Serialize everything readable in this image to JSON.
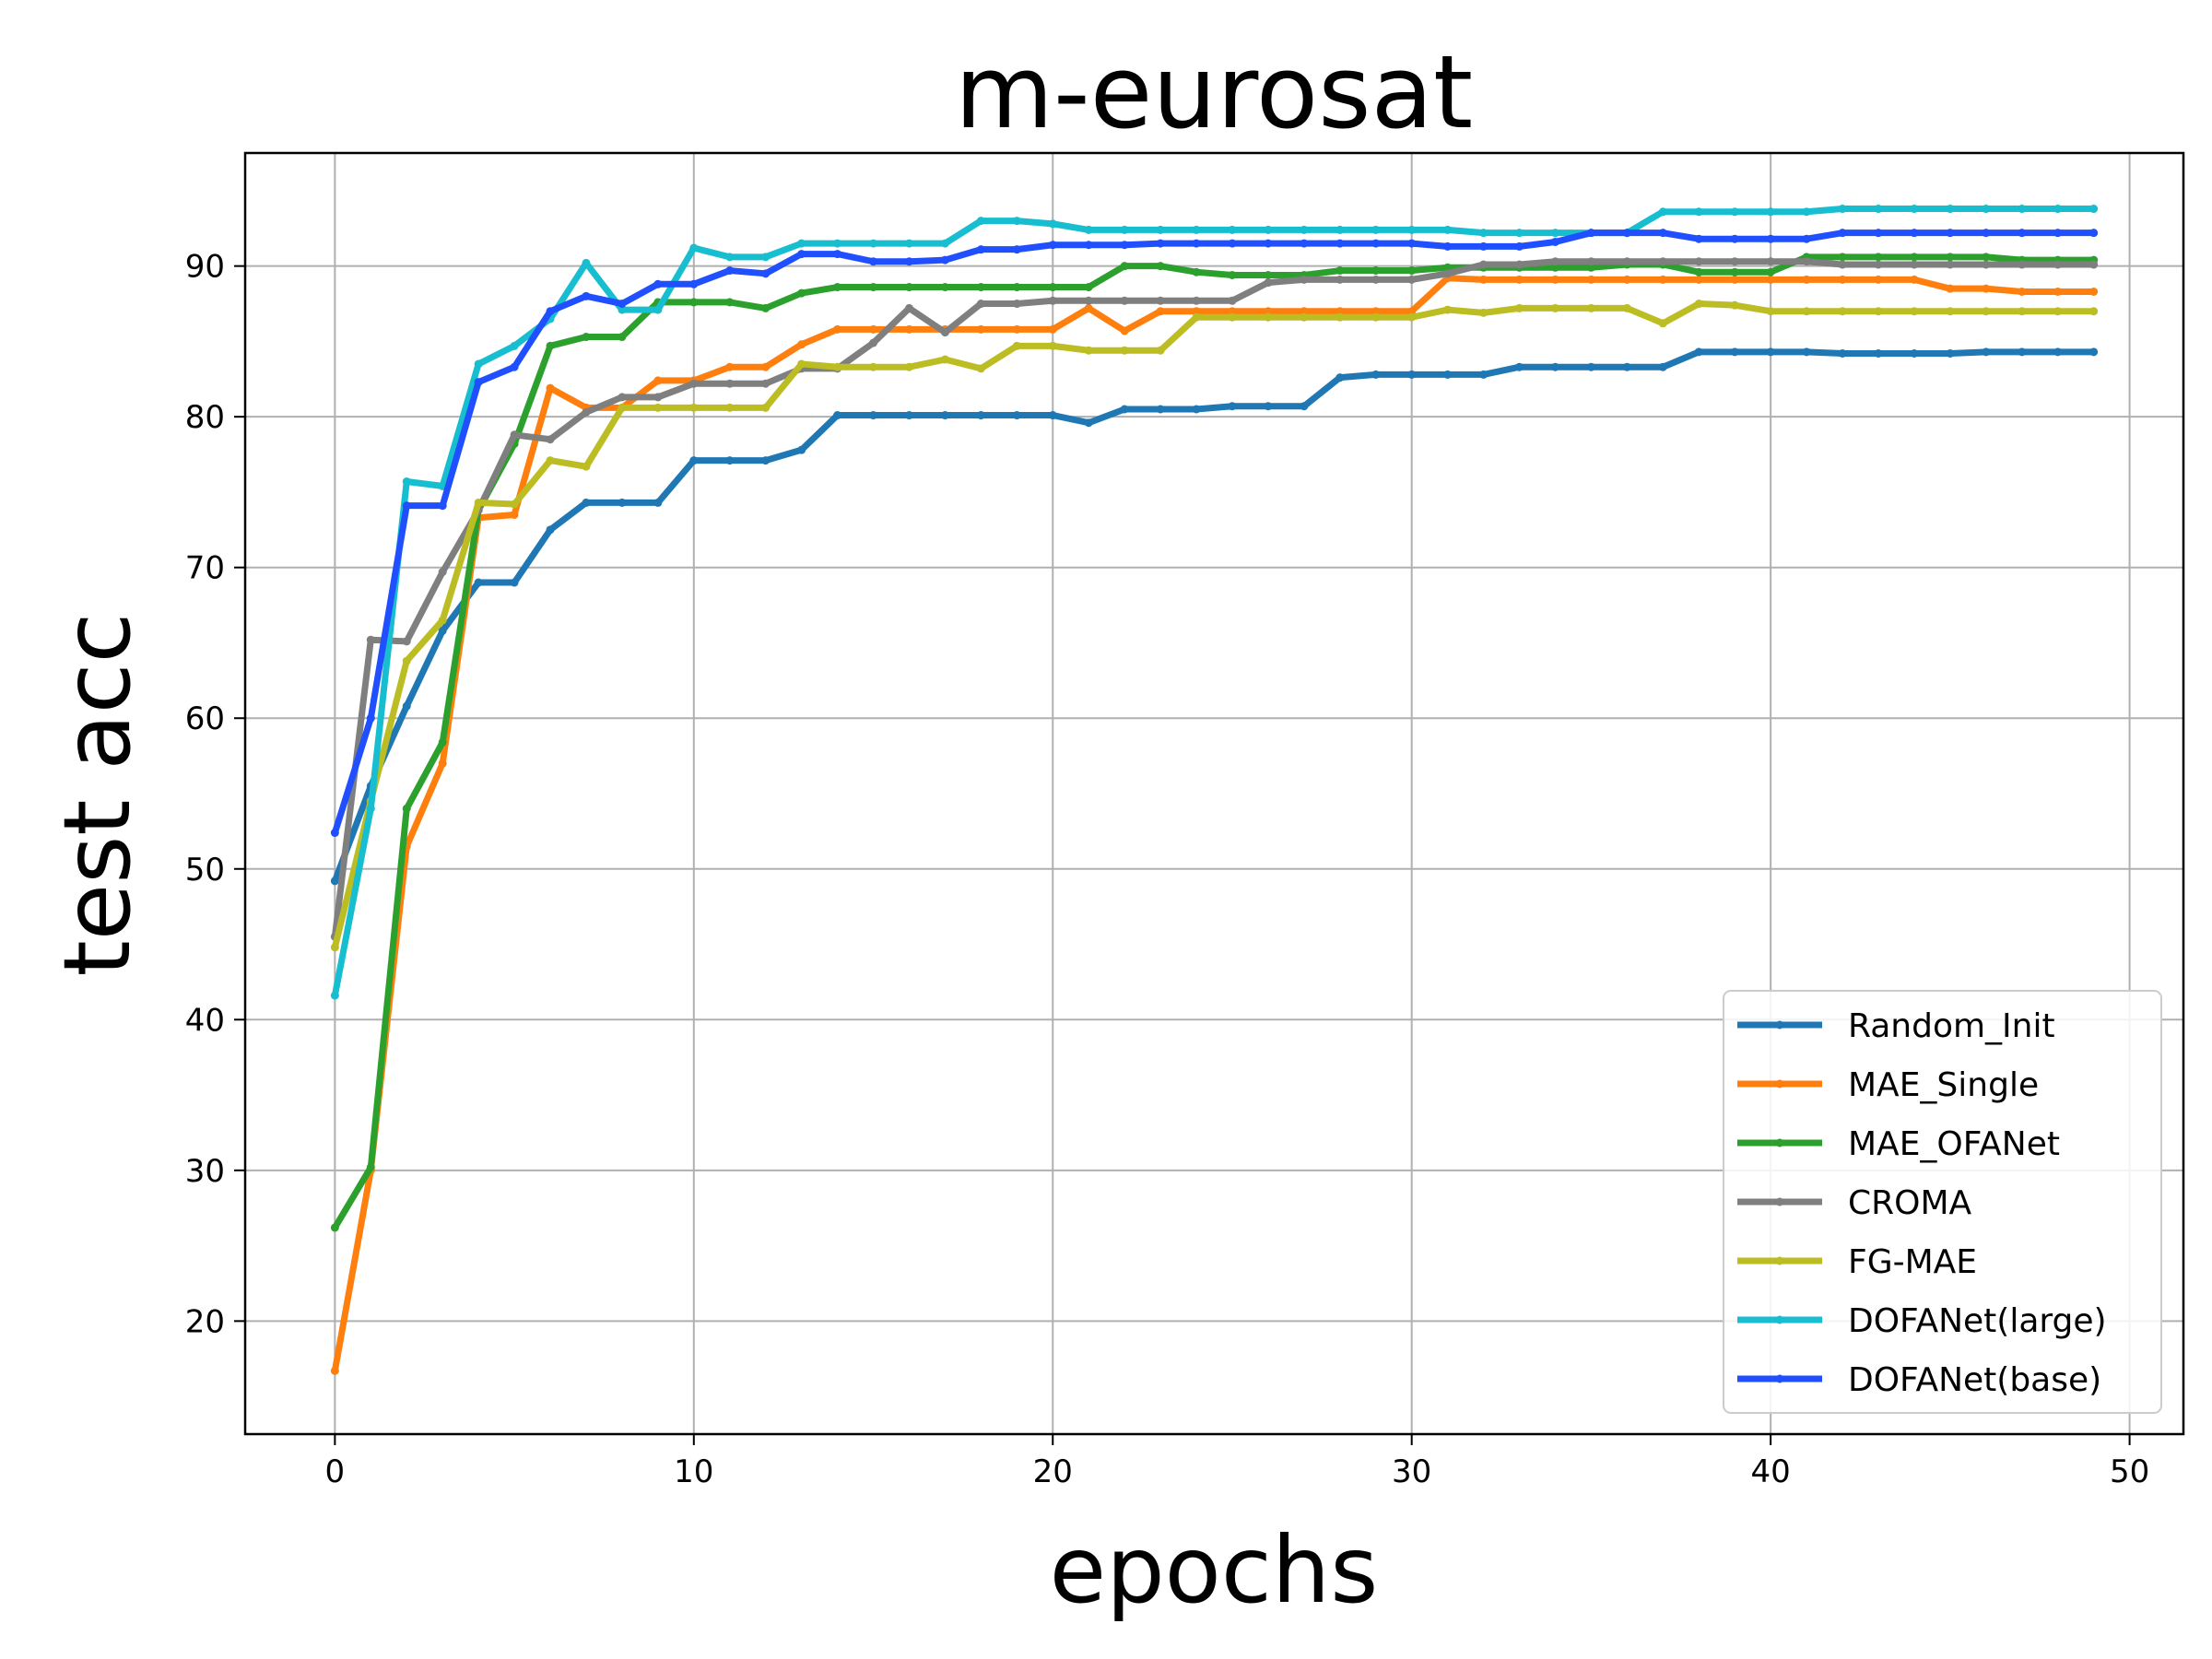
{
  "chart_data": {
    "type": "line",
    "title": "m-eurosat",
    "xlabel": "epochs",
    "ylabel": "test acc",
    "xlim": [
      -2.5,
      51.5
    ],
    "ylim": [
      12.5,
      97.5
    ],
    "xticks": [
      0,
      10,
      20,
      30,
      40,
      50
    ],
    "yticks": [
      20,
      30,
      40,
      50,
      60,
      70,
      80,
      90
    ],
    "grid": true,
    "legend_position": "lower-right",
    "x": [
      0,
      1,
      2,
      3,
      4,
      5,
      6,
      7,
      8,
      9,
      10,
      11,
      12,
      13,
      14,
      15,
      16,
      17,
      18,
      19,
      20,
      21,
      22,
      23,
      24,
      25,
      26,
      27,
      28,
      29,
      30,
      31,
      32,
      33,
      34,
      35,
      36,
      37,
      38,
      39,
      40,
      41,
      42,
      43,
      44,
      45,
      46,
      47,
      48,
      49
    ],
    "series": [
      {
        "name": "Random_Init",
        "color": "#1f77b4",
        "values": [
          49.2,
          55.5,
          60.8,
          65.8,
          69.0,
          69.0,
          72.5,
          74.3,
          74.3,
          74.3,
          77.1,
          77.1,
          77.1,
          77.8,
          80.1,
          80.1,
          80.1,
          80.1,
          80.1,
          80.1,
          80.1,
          79.6,
          80.5,
          80.5,
          80.5,
          80.7,
          80.7,
          80.7,
          82.6,
          82.8,
          82.8,
          82.8,
          82.8,
          83.3,
          83.3,
          83.3,
          83.3,
          83.3,
          84.3,
          84.3,
          84.3,
          84.3,
          84.2,
          84.2,
          84.2,
          84.2,
          84.3,
          84.3,
          84.3,
          84.3
        ]
      },
      {
        "name": "MAE_Single",
        "color": "#ff7f0e",
        "values": [
          16.7,
          30.0,
          51.5,
          57.0,
          73.3,
          73.5,
          81.9,
          80.6,
          80.6,
          82.4,
          82.4,
          83.3,
          83.3,
          84.8,
          85.8,
          85.8,
          85.8,
          85.8,
          85.8,
          85.8,
          85.8,
          87.2,
          85.7,
          87.0,
          87.0,
          87.0,
          87.0,
          87.0,
          87.0,
          87.0,
          87.0,
          89.2,
          89.1,
          89.1,
          89.1,
          89.1,
          89.1,
          89.1,
          89.1,
          89.1,
          89.1,
          89.1,
          89.1,
          89.1,
          89.1,
          88.5,
          88.5,
          88.3,
          88.3,
          88.3
        ]
      },
      {
        "name": "MAE_OFANet",
        "color": "#2ca02c",
        "values": [
          26.2,
          30.2,
          54.0,
          58.4,
          73.8,
          78.2,
          84.7,
          85.3,
          85.3,
          87.6,
          87.6,
          87.6,
          87.2,
          88.2,
          88.6,
          88.6,
          88.6,
          88.6,
          88.6,
          88.6,
          88.6,
          88.6,
          90.0,
          90.0,
          89.6,
          89.4,
          89.4,
          89.4,
          89.7,
          89.7,
          89.7,
          89.9,
          89.9,
          89.9,
          89.9,
          89.9,
          90.1,
          90.1,
          89.6,
          89.6,
          89.6,
          90.6,
          90.6,
          90.6,
          90.6,
          90.6,
          90.6,
          90.4,
          90.4,
          90.4
        ]
      },
      {
        "name": "CROMA",
        "color": "#7f7f7f",
        "values": [
          45.5,
          65.2,
          65.1,
          69.7,
          73.8,
          78.8,
          78.5,
          80.3,
          81.3,
          81.3,
          82.2,
          82.2,
          82.2,
          83.2,
          83.2,
          84.9,
          87.2,
          85.6,
          87.5,
          87.5,
          87.7,
          87.7,
          87.7,
          87.7,
          87.7,
          87.7,
          88.9,
          89.1,
          89.1,
          89.1,
          89.1,
          89.5,
          90.1,
          90.1,
          90.3,
          90.3,
          90.3,
          90.3,
          90.3,
          90.3,
          90.3,
          90.3,
          90.1,
          90.1,
          90.1,
          90.1,
          90.1,
          90.1,
          90.1,
          90.1
        ]
      },
      {
        "name": "FG-MAE",
        "color": "#bcbd22",
        "values": [
          44.8,
          54.5,
          63.8,
          66.5,
          74.3,
          74.2,
          77.1,
          76.7,
          80.6,
          80.6,
          80.6,
          80.6,
          80.6,
          83.5,
          83.3,
          83.3,
          83.3,
          83.8,
          83.2,
          84.7,
          84.7,
          84.4,
          84.4,
          84.4,
          86.6,
          86.6,
          86.6,
          86.6,
          86.6,
          86.6,
          86.6,
          87.1,
          86.9,
          87.2,
          87.2,
          87.2,
          87.2,
          86.2,
          87.5,
          87.4,
          87.0,
          87.0,
          87.0,
          87.0,
          87.0,
          87.0,
          87.0,
          87.0,
          87.0,
          87.0
        ]
      },
      {
        "name": "DOFANet(large)",
        "color": "#17becf",
        "values": [
          41.6,
          54.0,
          75.7,
          75.4,
          83.5,
          84.7,
          86.5,
          90.2,
          87.1,
          87.1,
          91.2,
          90.6,
          90.6,
          91.5,
          91.5,
          91.5,
          91.5,
          91.5,
          93.0,
          93.0,
          92.8,
          92.4,
          92.4,
          92.4,
          92.4,
          92.4,
          92.4,
          92.4,
          92.4,
          92.4,
          92.4,
          92.4,
          92.2,
          92.2,
          92.2,
          92.2,
          92.2,
          93.6,
          93.6,
          93.6,
          93.6,
          93.6,
          93.8,
          93.8,
          93.8,
          93.8,
          93.8,
          93.8,
          93.8,
          93.8
        ]
      },
      {
        "name": "DOFANet(base)",
        "color": "#1f4fff",
        "values": [
          52.4,
          60.0,
          74.1,
          74.1,
          82.3,
          83.3,
          87.0,
          88.0,
          87.5,
          88.8,
          88.8,
          89.7,
          89.5,
          90.8,
          90.8,
          90.3,
          90.3,
          90.4,
          91.1,
          91.1,
          91.4,
          91.4,
          91.4,
          91.5,
          91.5,
          91.5,
          91.5,
          91.5,
          91.5,
          91.5,
          91.5,
          91.3,
          91.3,
          91.3,
          91.6,
          92.2,
          92.2,
          92.2,
          91.8,
          91.8,
          91.8,
          91.8,
          92.2,
          92.2,
          92.2,
          92.2,
          92.2,
          92.2,
          92.2,
          92.2
        ]
      }
    ]
  }
}
